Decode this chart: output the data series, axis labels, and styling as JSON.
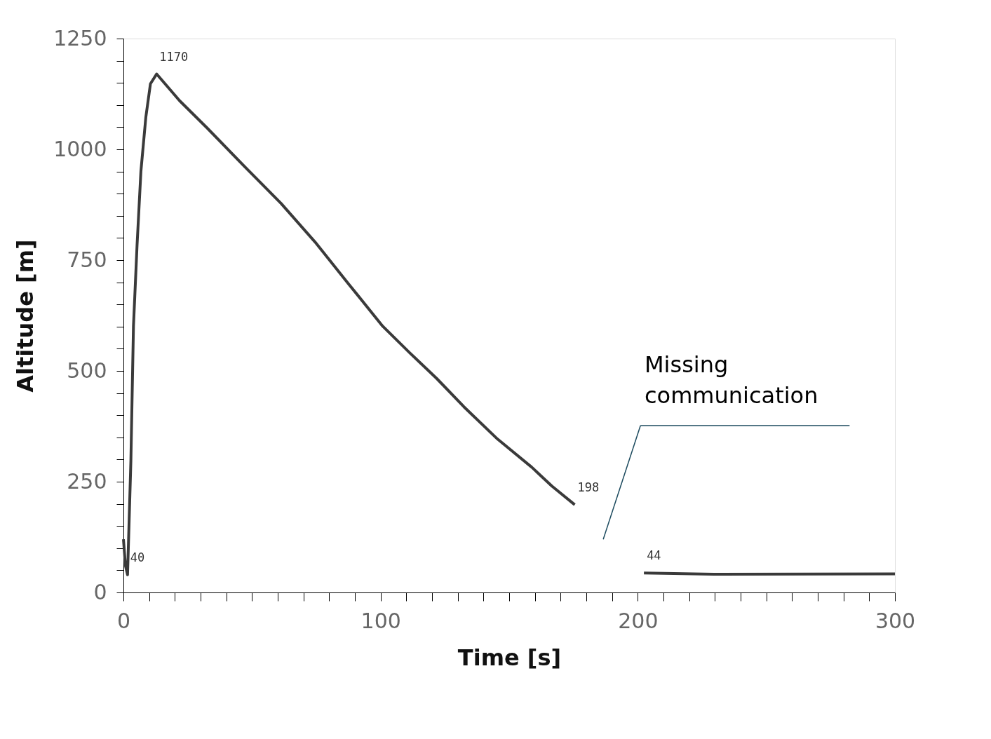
{
  "chart_data": {
    "type": "line",
    "xlabel": "Time [s]",
    "ylabel": "Altitude  [m]",
    "xlim": [
      0,
      300
    ],
    "ylim": [
      0,
      1250
    ],
    "xticks": [
      0,
      {
        "value": 10,
        "label": null
      },
      {
        "value": 20,
        "label": null
      },
      {
        "value": 30,
        "label": null
      },
      {
        "value": 40,
        "label": null
      },
      {
        "value": 50,
        "label": null
      },
      {
        "value": 60,
        "label": null
      },
      {
        "value": 70,
        "label": null
      },
      {
        "value": 80,
        "label": null
      },
      {
        "value": 90,
        "label": null
      },
      100,
      {
        "value": 110,
        "label": null
      },
      {
        "value": 120,
        "label": null
      },
      {
        "value": 130,
        "label": null
      },
      {
        "value": 140,
        "label": null
      },
      {
        "value": 150,
        "label": null
      },
      {
        "value": 160,
        "label": null
      },
      {
        "value": 170,
        "label": null
      },
      {
        "value": 180,
        "label": null
      },
      {
        "value": 190,
        "label": null
      },
      200,
      {
        "value": 210,
        "label": null
      },
      {
        "value": 220,
        "label": null
      },
      {
        "value": 230,
        "label": null
      },
      {
        "value": 240,
        "label": null
      },
      {
        "value": 250,
        "label": null
      },
      {
        "value": 260,
        "label": null
      },
      {
        "value": 270,
        "label": null
      },
      {
        "value": 280,
        "label": null
      },
      {
        "value": 290,
        "label": null
      },
      300
    ],
    "yticks": [
      0,
      {
        "value": 50,
        "label": null
      },
      {
        "value": 100,
        "label": null
      },
      {
        "value": 150,
        "label": null
      },
      {
        "value": 200,
        "label": null
      },
      250,
      {
        "value": 300,
        "label": null
      },
      {
        "value": 350,
        "label": null
      },
      {
        "value": 400,
        "label": null
      },
      {
        "value": 450,
        "label": null
      },
      500,
      {
        "value": 550,
        "label": null
      },
      {
        "value": 600,
        "label": null
      },
      {
        "value": 650,
        "label": null
      },
      {
        "value": 700,
        "label": null
      },
      750,
      {
        "value": 800,
        "label": null
      },
      {
        "value": 850,
        "label": null
      },
      {
        "value": 900,
        "label": null
      },
      {
        "value": 950,
        "label": null
      },
      1000,
      {
        "value": 1050,
        "label": null
      },
      {
        "value": 1100,
        "label": null
      },
      {
        "value": 1150,
        "label": null
      },
      {
        "value": 1200,
        "label": null
      },
      1250
    ],
    "grid": false,
    "marker": "none",
    "line_style": "solid",
    "series": [
      {
        "color": "#3a3a3a",
        "x": [
          0,
          0.8,
          1.6,
          2.9,
          3.9,
          5.3,
          6.8,
          8.7,
          10.5,
          12.9,
          21.8,
          32.4,
          46.8,
          61.3,
          74.5,
          87.6,
          100.8,
          111.3,
          121.8,
          132.4,
          145.5,
          158.7,
          166.6,
          175.5,
          188,
          202.4,
          232,
          300
        ],
        "values": [
          120,
          60,
          40,
          298,
          601,
          784,
          951,
          1072,
          1148,
          1170,
          1110,
          1049,
          963,
          878,
          791,
          696,
          601,
          541,
          483,
          419,
          346,
          283,
          240,
          198,
          null,
          44,
          41,
          42
        ]
      }
    ],
    "annotations": [
      {
        "text": "1170",
        "x": 12.9,
        "y": 1170
      },
      {
        "text": "40",
        "x": 1.6,
        "y": 40
      },
      {
        "text": "198",
        "x": 175.5,
        "y": 198
      },
      {
        "text": "44",
        "x": 202.4,
        "y": 44
      },
      "Missing communication"
    ]
  }
}
